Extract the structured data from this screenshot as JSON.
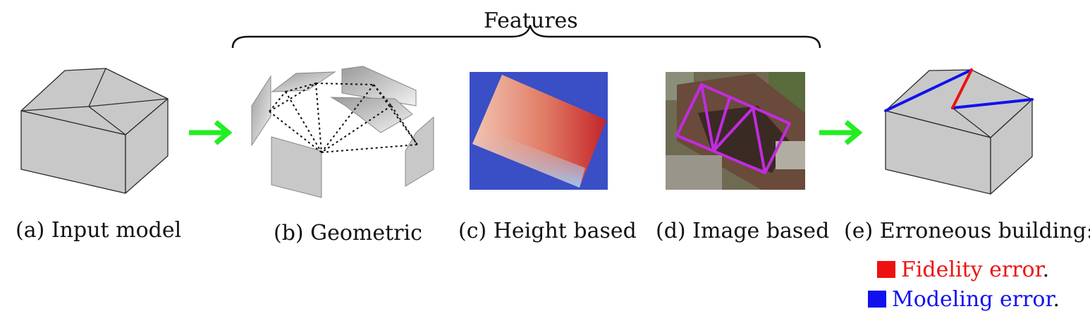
{
  "group_label": "Features",
  "panels": [
    {
      "id": "a",
      "caption": "(a) Input model"
    },
    {
      "id": "b",
      "caption": "(b) Geometric"
    },
    {
      "id": "c",
      "caption": "(c) Height based"
    },
    {
      "id": "d",
      "caption": "(d) Image based"
    },
    {
      "id": "e",
      "caption": "(e) Erroneous building:"
    }
  ],
  "legend": [
    {
      "label": "Fidelity error",
      "color": "#ee1111"
    },
    {
      "label": "Modeling error",
      "color": "#1111ee"
    }
  ],
  "legend_suffix": ".",
  "colors": {
    "arrow": "#22ee22",
    "wall": "#c8c8c8",
    "outline": "#2b2b2b",
    "height_background": "#3a4ec6",
    "polygon_overlay": "#c22be0"
  }
}
